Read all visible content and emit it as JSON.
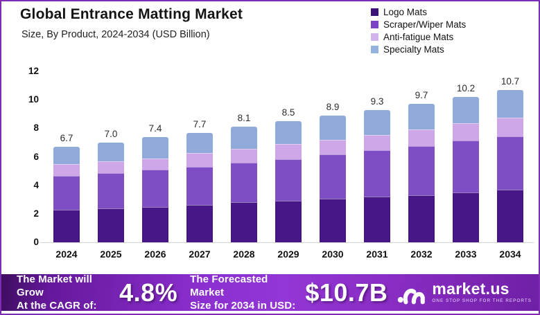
{
  "header": {
    "title": "Global Entrance Matting Market",
    "subtitle": "Size, By Product, 2024-2034 (USD Billion)"
  },
  "chart_data": {
    "type": "bar",
    "stacked": true,
    "categories": [
      "2024",
      "2025",
      "2026",
      "2027",
      "2028",
      "2029",
      "2030",
      "2031",
      "2032",
      "2033",
      "2034"
    ],
    "series": [
      {
        "name": "Logo Mats",
        "color": "#471687",
        "values": [
          2.3,
          2.4,
          2.5,
          2.6,
          2.8,
          2.9,
          3.05,
          3.2,
          3.3,
          3.5,
          3.7
        ]
      },
      {
        "name": "Scraper/Wiper Mats",
        "color": "#7d4ec4",
        "values": [
          2.35,
          2.45,
          2.6,
          2.7,
          2.8,
          2.95,
          3.1,
          3.25,
          3.45,
          3.65,
          3.75
        ]
      },
      {
        "name": "Anti-fatigue Mats",
        "color": "#cda7e8",
        "values": [
          0.85,
          0.85,
          0.8,
          0.95,
          0.95,
          1.05,
          1.05,
          1.1,
          1.15,
          1.2,
          1.3
        ]
      },
      {
        "name": "Specialty Mats",
        "color": "#90abd9",
        "values": [
          1.2,
          1.3,
          1.5,
          1.45,
          1.55,
          1.6,
          1.7,
          1.75,
          1.8,
          1.85,
          1.95
        ]
      }
    ],
    "totals": [
      "6.7",
      "7.0",
      "7.4",
      "7.7",
      "8.1",
      "8.5",
      "8.9",
      "9.3",
      "9.7",
      "10.2",
      "10.7"
    ],
    "title": "Global Entrance Matting Market",
    "subtitle": "Size, By Product, 2024-2034 (USD Billion)",
    "xlabel": "",
    "ylabel": "USD Billion",
    "ylim": [
      0,
      12
    ],
    "yticks": [
      0,
      2,
      4,
      6,
      8,
      10,
      12
    ],
    "grid": false,
    "legend_position": "top-right"
  },
  "legend": {
    "items": [
      {
        "label": "Logo Mats",
        "color": "#3c1277"
      },
      {
        "label": "Scraper/Wiper Mats",
        "color": "#7c44c4"
      },
      {
        "label": "Anti-fatigue Mats",
        "color": "#d4b4ee"
      },
      {
        "label": "Specialty Mats",
        "color": "#93b2de"
      }
    ]
  },
  "banner": {
    "cagr_label_line1": "The Market will Grow",
    "cagr_label_line2": "At the CAGR of:",
    "cagr_value": "4.8%",
    "forecast_label_line1": "The Forecasted Market",
    "forecast_label_line2": "Size for 2034 in USD:",
    "forecast_value": "$10.7B",
    "brand_name": "market.us",
    "brand_tagline": "ONE STOP SHOP FOR THE REPORTS",
    "accent_color": "#9336d6"
  }
}
